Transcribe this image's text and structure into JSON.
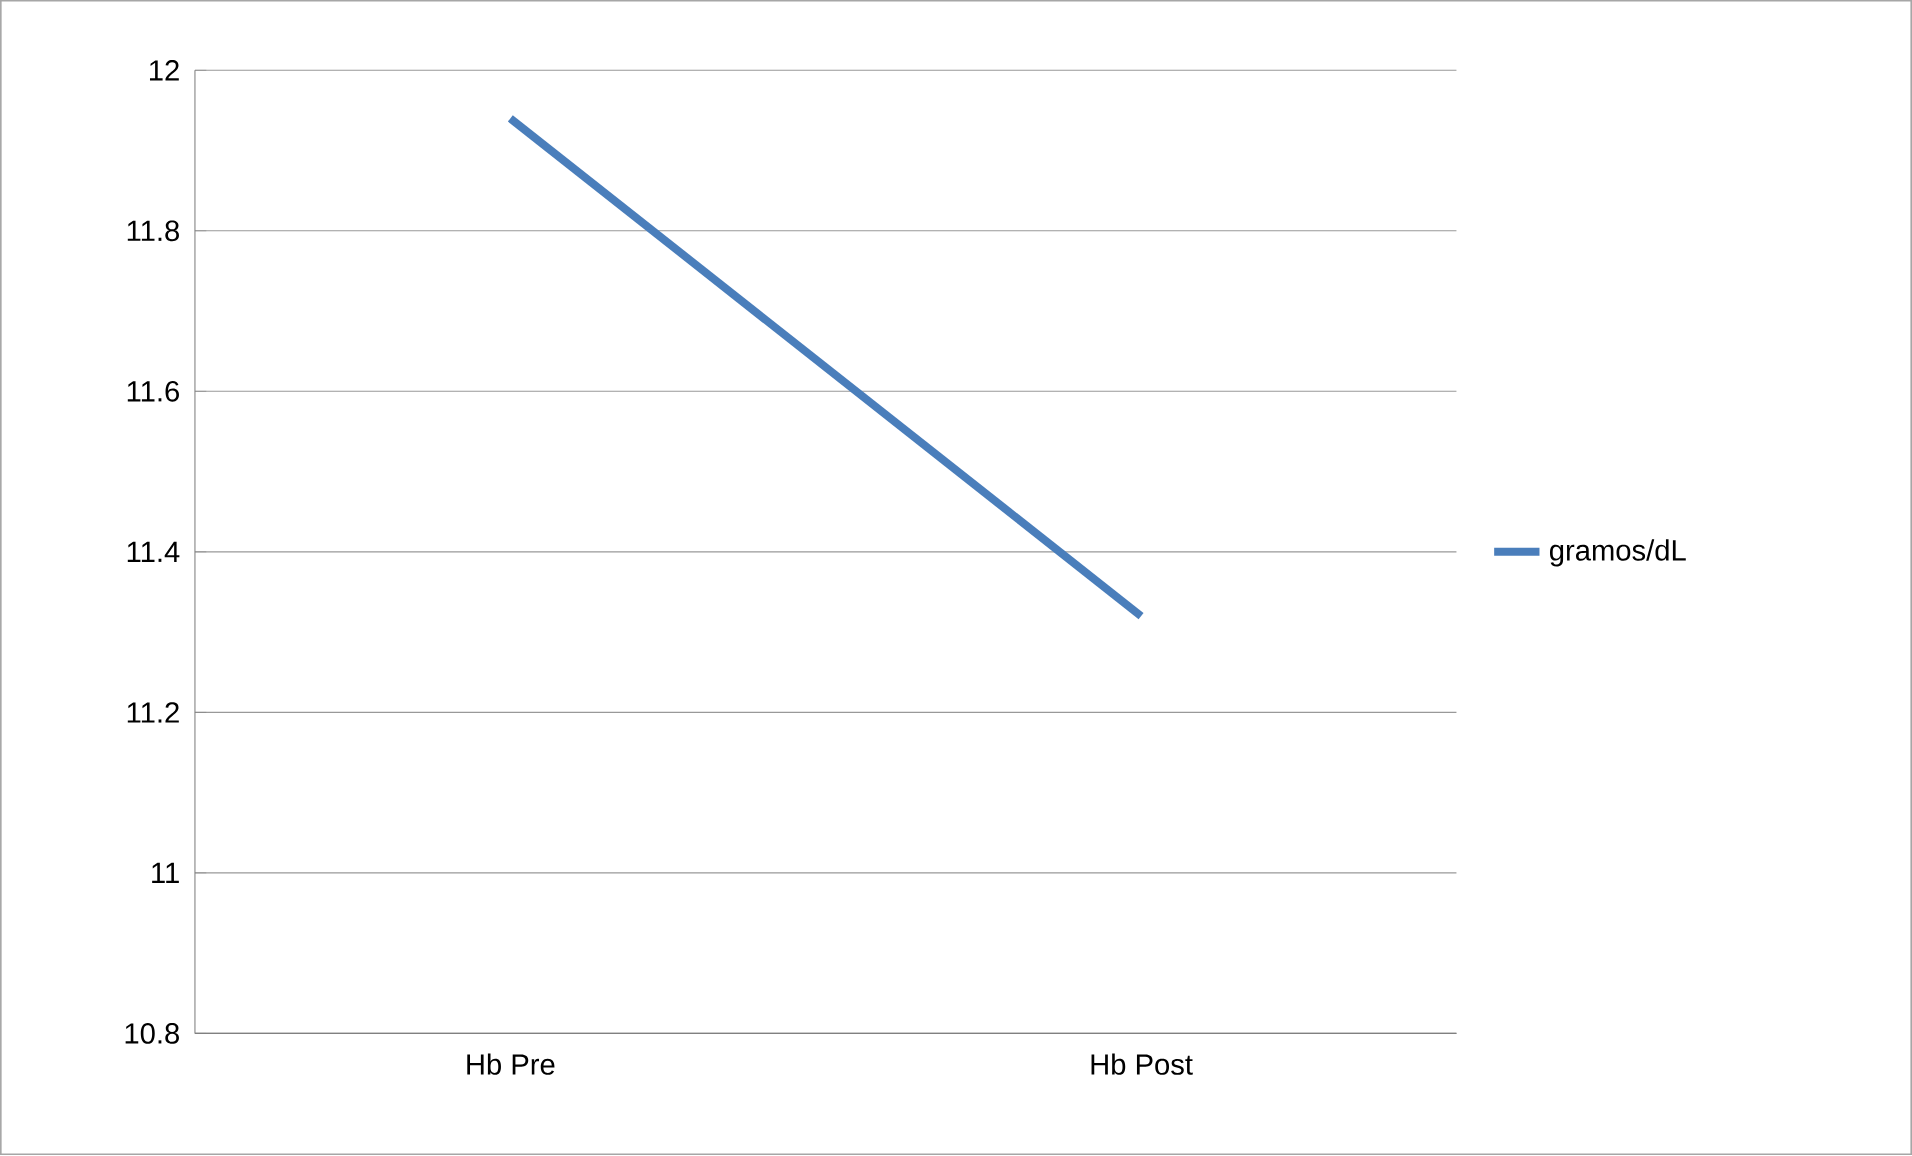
{
  "chart_data": {
    "type": "line",
    "categories": [
      "Hb Pre",
      "Hb Post"
    ],
    "series": [
      {
        "name": "gramos/dL",
        "color": "#4a7ebb",
        "values": [
          11.94,
          11.32
        ]
      }
    ],
    "ylim": [
      10.8,
      12
    ],
    "yticks": [
      10.8,
      11,
      11.2,
      11.4,
      11.6,
      11.8,
      12
    ],
    "grid": "y",
    "legend": "right",
    "marker": "none",
    "line_style": "solid"
  }
}
